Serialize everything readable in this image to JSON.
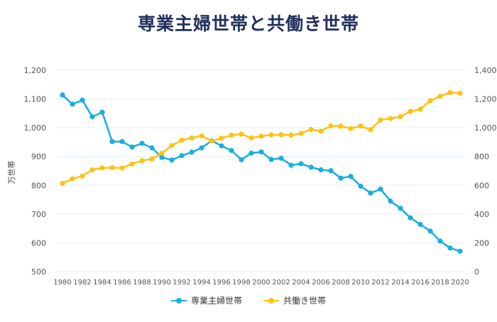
{
  "colors": {
    "series1": "#1aaee0",
    "series2": "#fcc214",
    "grid": "#e3eef7"
  },
  "chart_data": {
    "type": "line",
    "title": "専業主婦世帯と共働き世帯",
    "ylabel": "万世帯",
    "x": [
      1980,
      1981,
      1982,
      1983,
      1984,
      1985,
      1986,
      1987,
      1988,
      1989,
      1990,
      1991,
      1992,
      1993,
      1994,
      1995,
      1996,
      1997,
      1998,
      1999,
      2000,
      2001,
      2002,
      2003,
      2004,
      2005,
      2006,
      2007,
      2008,
      2009,
      2010,
      2011,
      2012,
      2013,
      2014,
      2015,
      2016,
      2017,
      2018,
      2019,
      2020
    ],
    "x_tick_labels": [
      "1980",
      "1982",
      "1984",
      "1986",
      "1988",
      "1990",
      "1992",
      "1994",
      "1996",
      "1998",
      "2000",
      "2002",
      "2004",
      "2006",
      "2008",
      "2010",
      "2012",
      "2014",
      "2016",
      "2018",
      "2020"
    ],
    "y_left": {
      "lim": [
        500,
        1200
      ],
      "ticks": [
        "500",
        "600",
        "700",
        "800",
        "900",
        "1,000",
        "1,100",
        "1,200"
      ]
    },
    "y_right": {
      "lim": [
        0,
        1400
      ],
      "ticks": [
        "0",
        "200",
        "400",
        "600",
        "800",
        "1,000",
        "1,200",
        "1,400"
      ]
    },
    "series": [
      {
        "name": "専業主婦世帯",
        "axis": "left",
        "values": [
          1114,
          1082,
          1096,
          1038,
          1054,
          952,
          952,
          933,
          946,
          930,
          897,
          888,
          903,
          915,
          930,
          955,
          937,
          921,
          889,
          912,
          916,
          890,
          894,
          870,
          875,
          863,
          854,
          851,
          825,
          831,
          797,
          773,
          787,
          745,
          720,
          687,
          664,
          641,
          606,
          582,
          571
        ]
      },
      {
        "name": "共働き世帯",
        "axis": "right",
        "values": [
          614,
          645,
          664,
          708,
          721,
          722,
          720,
          748,
          771,
          783,
          823,
          877,
          914,
          929,
          943,
          908,
          927,
          949,
          956,
          929,
          942,
          951,
          951,
          949,
          961,
          988,
          977,
          1013,
          1011,
          995,
          1012,
          987,
          1054,
          1065,
          1077,
          1114,
          1129,
          1188,
          1219,
          1245,
          1240
        ]
      }
    ],
    "grid": true,
    "legend_position": "bottom"
  }
}
